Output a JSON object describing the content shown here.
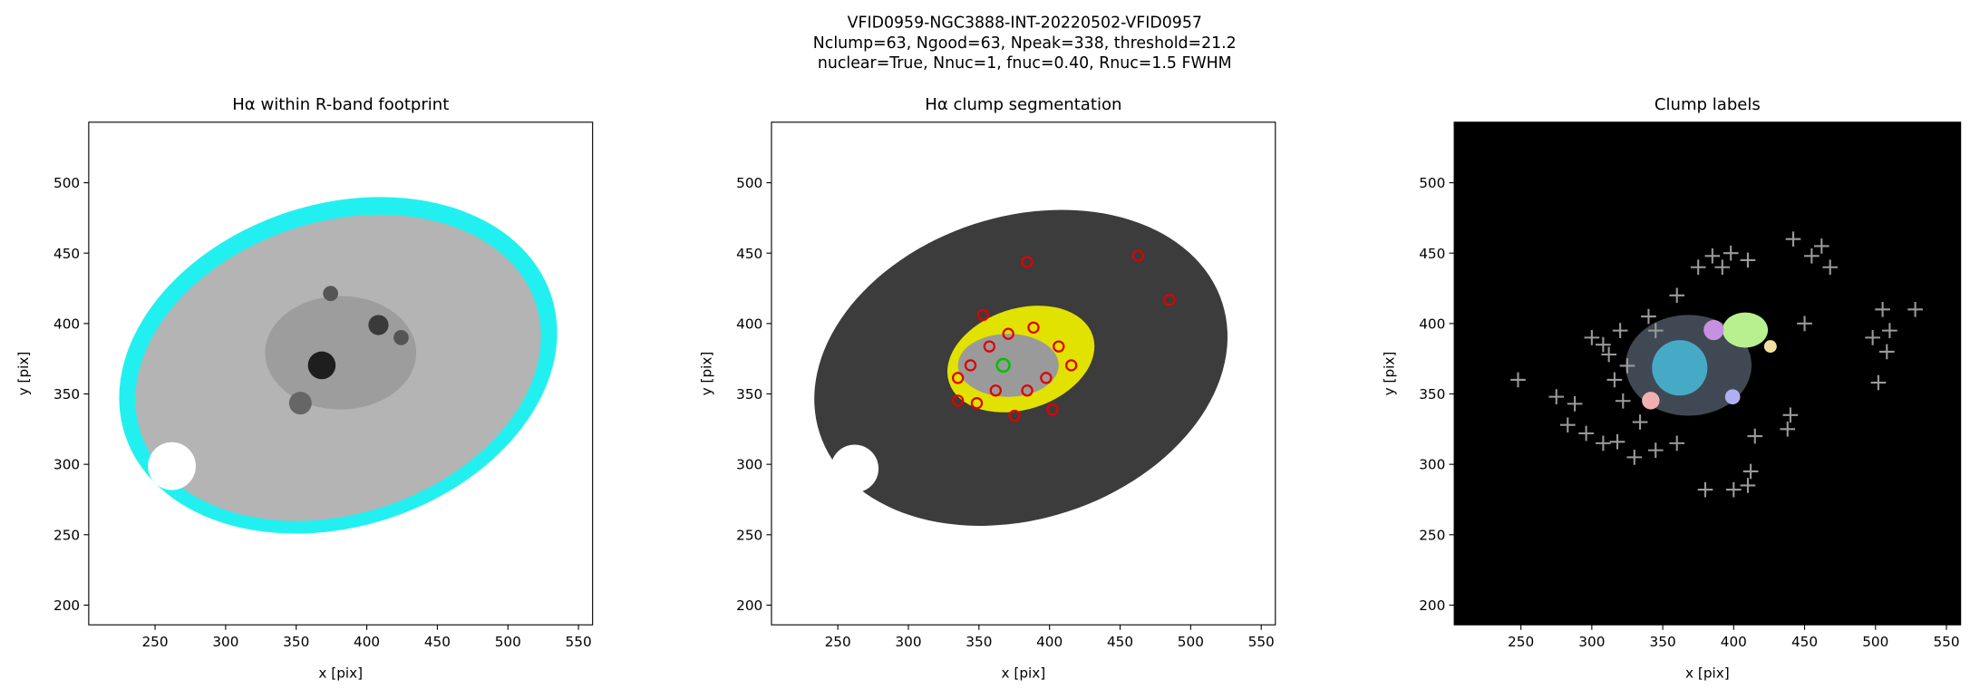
{
  "suptitle": [
    "VFID0959-NGC3888-INT-20220502-VFID0957",
    "Nclump=63, Ngood=63, Npeak=338, threshold=21.2",
    "nuclear=True, Nnuc=1, fnuc=0.40, Rnuc=1.5 FWHM"
  ],
  "chart_data": [
    {
      "type": "image",
      "title": "Hα within R-band footprint",
      "xlabel": "x [pix]",
      "ylabel": "y [pix]",
      "xlim": [
        203,
        560
      ],
      "ylim": [
        186,
        543
      ],
      "xticks": [
        250,
        300,
        350,
        400,
        450,
        500,
        550
      ],
      "yticks": [
        200,
        250,
        300,
        350,
        400,
        450,
        500
      ]
    },
    {
      "type": "image",
      "title": "Hα clump segmentation",
      "xlabel": "x [pix]",
      "ylabel": "y [pix]",
      "xlim": [
        203,
        560
      ],
      "ylim": [
        186,
        543
      ],
      "xticks": [
        250,
        300,
        350,
        400,
        450,
        500,
        550
      ],
      "yticks": [
        200,
        250,
        300,
        350,
        400,
        450,
        500
      ]
    },
    {
      "type": "image",
      "title": "Clump labels",
      "xlabel": "x [pix]",
      "ylabel": "y [pix]",
      "xlim": [
        203,
        560
      ],
      "ylim": [
        186,
        543
      ],
      "xticks": [
        250,
        300,
        350,
        400,
        450,
        500,
        550
      ],
      "yticks": [
        200,
        250,
        300,
        350,
        400,
        450,
        500
      ],
      "markers": {
        "color": "#9a9a9a",
        "x": [
          248,
          275,
          288,
          283,
          296,
          308,
          318,
          300,
          308,
          312,
          320,
          316,
          325,
          322,
          334,
          340,
          345,
          360,
          375,
          385,
          392,
          398,
          410,
          442,
          455,
          462,
          468,
          450,
          440,
          438,
          415,
          412,
          410,
          380,
          400,
          498,
          505,
          510,
          508,
          502,
          528,
          345,
          360,
          330
        ],
        "y": [
          360,
          348,
          343,
          328,
          322,
          315,
          316,
          390,
          385,
          378,
          395,
          360,
          370,
          345,
          330,
          405,
          395,
          420,
          440,
          448,
          440,
          450,
          445,
          460,
          448,
          455,
          440,
          400,
          335,
          325,
          320,
          295,
          285,
          282,
          282,
          390,
          410,
          395,
          380,
          358,
          410,
          310,
          315,
          305
        ]
      }
    }
  ]
}
